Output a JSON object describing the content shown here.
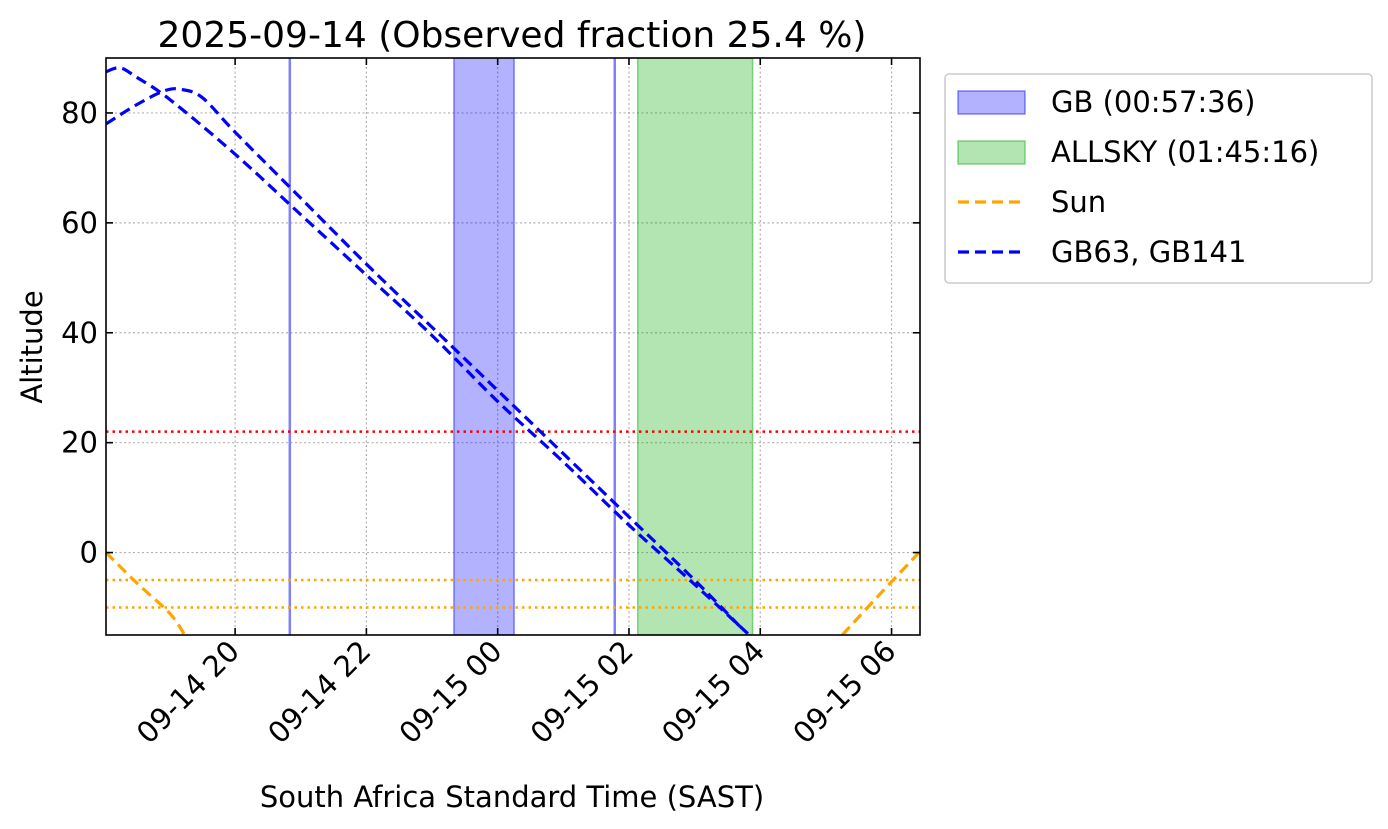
{
  "chart_data": {
    "type": "line",
    "title": "2025-09-14 (Observed fraction 25.4 %)",
    "xlabel": "South Africa Standard Time (SAST)",
    "ylabel": "Altitude",
    "x_axis_type": "datetime",
    "xlim": [
      "2025-09-14 18:02",
      "2025-09-15 06:26"
    ],
    "ylim": [
      -15,
      90
    ],
    "x_ticks": [
      {
        "t": "2025-09-14 20:00",
        "label": "09-14 20"
      },
      {
        "t": "2025-09-14 22:00",
        "label": "09-14 22"
      },
      {
        "t": "2025-09-15 00:00",
        "label": "09-15 00"
      },
      {
        "t": "2025-09-15 02:00",
        "label": "09-15 02"
      },
      {
        "t": "2025-09-15 04:00",
        "label": "09-15 04"
      },
      {
        "t": "2025-09-15 06:00",
        "label": "09-15 06"
      }
    ],
    "y_ticks": [
      0,
      20,
      40,
      60,
      80
    ],
    "grid": true,
    "legend_position": "outside-right",
    "legend": [
      {
        "label": "GB (00:57:36)",
        "kind": "patch",
        "color": "#0000ff",
        "alpha": 0.3
      },
      {
        "label": "ALLSKY (01:45:16)",
        "kind": "patch",
        "color": "#00aa00",
        "alpha": 0.3
      },
      {
        "label": "Sun",
        "kind": "dashed-line",
        "color": "#ffa500"
      },
      {
        "label": "GB63, GB141",
        "kind": "dashed-line",
        "color": "#0000ff"
      }
    ],
    "spans": [
      {
        "series": "GB",
        "start": "2025-09-14 23:20",
        "end": "2025-09-15 00:15",
        "color": "#0000ff",
        "alpha": 0.3
      },
      {
        "series": "ALLSKY",
        "start": "2025-09-15 02:08",
        "end": "2025-09-15 03:53",
        "color": "#00aa00",
        "alpha": 0.3
      }
    ],
    "vlines": [
      {
        "t": "2025-09-14 20:50",
        "color": "#8080ff"
      },
      {
        "t": "2025-09-15 01:47",
        "color": "#8080ff"
      }
    ],
    "hlines": [
      {
        "y": 22,
        "color": "#ff0000",
        "style": "dotted"
      },
      {
        "y": -5,
        "color": "#ffa500",
        "style": "dotted"
      },
      {
        "y": -10,
        "color": "#ffa500",
        "style": "dotted"
      }
    ],
    "series": [
      {
        "name": "GB63",
        "color": "#0000ff",
        "style": "dashed",
        "points": [
          [
            "2025-09-14 18:02",
            87.5
          ],
          [
            "2025-09-14 18:15",
            88.2
          ],
          [
            "2025-09-14 18:30",
            86.5
          ],
          [
            "2025-09-14 19:00",
            82.5
          ],
          [
            "2025-09-14 20:00",
            72.5
          ],
          [
            "2025-09-14 21:00",
            61.5
          ],
          [
            "2025-09-14 22:00",
            50.5
          ],
          [
            "2025-09-14 23:00",
            39.5
          ],
          [
            "2025-09-15 00:00",
            27.5
          ],
          [
            "2025-09-15 01:00",
            16.5
          ],
          [
            "2025-09-15 02:00",
            5.0
          ],
          [
            "2025-09-15 03:00",
            -5.8
          ],
          [
            "2025-09-15 03:50",
            -15.0
          ]
        ]
      },
      {
        "name": "GB141",
        "color": "#0000ff",
        "style": "dashed",
        "points": [
          [
            "2025-09-14 18:02",
            78.0
          ],
          [
            "2025-09-14 18:30",
            81.5
          ],
          [
            "2025-09-14 18:55",
            84.0
          ],
          [
            "2025-09-14 19:10",
            84.3
          ],
          [
            "2025-09-14 19:30",
            82.8
          ],
          [
            "2025-09-14 20:00",
            76.5
          ],
          [
            "2025-09-14 21:00",
            64.5
          ],
          [
            "2025-09-14 22:00",
            52.5
          ],
          [
            "2025-09-14 23:00",
            41.0
          ],
          [
            "2025-09-15 00:00",
            29.5
          ],
          [
            "2025-09-15 01:00",
            18.0
          ],
          [
            "2025-09-15 02:00",
            6.5
          ],
          [
            "2025-09-15 03:00",
            -5.0
          ],
          [
            "2025-09-15 03:45",
            -14.2
          ]
        ]
      },
      {
        "name": "Sun (evening)",
        "color": "#ffa500",
        "style": "dashed",
        "points": [
          [
            "2025-09-14 18:02",
            0.0
          ],
          [
            "2025-09-14 18:30",
            -5.5
          ],
          [
            "2025-09-14 19:00",
            -11.0
          ],
          [
            "2025-09-14 19:14",
            -15.0
          ]
        ]
      },
      {
        "name": "Sun (morning)",
        "color": "#ffa500",
        "style": "dashed",
        "points": [
          [
            "2025-09-15 05:15",
            -15.0
          ],
          [
            "2025-09-15 05:45",
            -8.5
          ],
          [
            "2025-09-15 06:26",
            0.2
          ]
        ]
      }
    ]
  }
}
